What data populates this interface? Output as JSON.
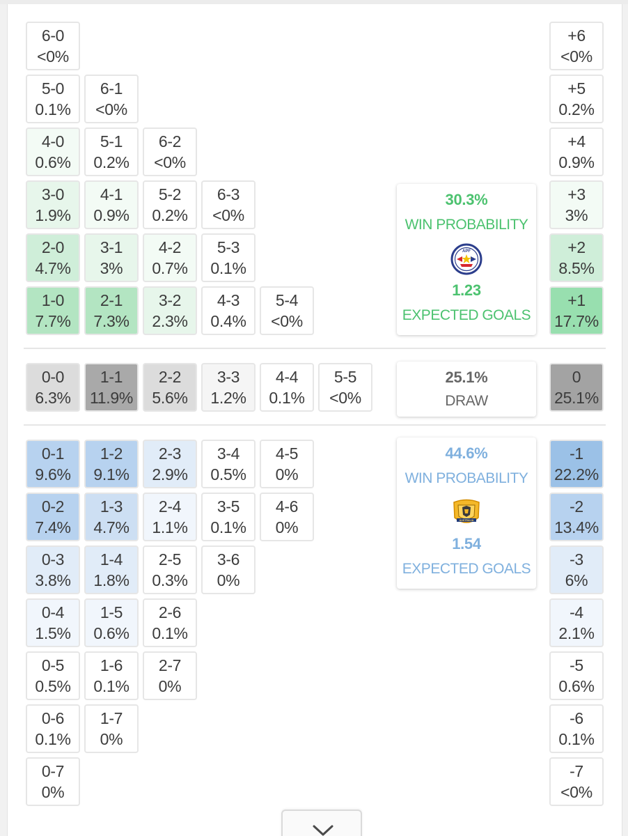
{
  "home_team": {
    "win_probability": "30.3%",
    "win_label": "WIN PROBABILITY",
    "expected_goals": "1.23",
    "xg_label": "EXPECTED GOALS",
    "crest": "paraguay-apf-crest-icon",
    "crest_text": "APF",
    "accent_color": "#4cc26f"
  },
  "draw": {
    "probability": "25.1%",
    "label": "DRAW"
  },
  "away_team": {
    "win_probability": "44.6%",
    "win_label": "WIN PROBABILITY",
    "expected_goals": "1.54",
    "xg_label": "EXPECTED GOALS",
    "crest": "australia-crest-icon",
    "crest_text": "AUSTRALIA",
    "accent_color": "#7fb0de"
  },
  "home_scores": [
    {
      "score": "6-0",
      "prob": "<0%",
      "shade": "g0"
    },
    {
      "score": "5-0",
      "prob": "0.1%",
      "shade": "g0"
    },
    {
      "score": "6-1",
      "prob": "<0%",
      "shade": "g0"
    },
    {
      "score": "4-0",
      "prob": "0.6%",
      "shade": "g1"
    },
    {
      "score": "5-1",
      "prob": "0.2%",
      "shade": "g0"
    },
    {
      "score": "6-2",
      "prob": "<0%",
      "shade": "g0"
    },
    {
      "score": "3-0",
      "prob": "1.9%",
      "shade": "g2"
    },
    {
      "score": "4-1",
      "prob": "0.9%",
      "shade": "g1"
    },
    {
      "score": "5-2",
      "prob": "0.2%",
      "shade": "g0"
    },
    {
      "score": "6-3",
      "prob": "<0%",
      "shade": "g0"
    },
    {
      "score": "2-0",
      "prob": "4.7%",
      "shade": "g3"
    },
    {
      "score": "3-1",
      "prob": "3%",
      "shade": "g2"
    },
    {
      "score": "4-2",
      "prob": "0.7%",
      "shade": "g1"
    },
    {
      "score": "5-3",
      "prob": "0.1%",
      "shade": "g0"
    },
    {
      "score": "1-0",
      "prob": "7.7%",
      "shade": "g4"
    },
    {
      "score": "2-1",
      "prob": "7.3%",
      "shade": "g4"
    },
    {
      "score": "3-2",
      "prob": "2.3%",
      "shade": "g2"
    },
    {
      "score": "4-3",
      "prob": "0.4%",
      "shade": "g0"
    },
    {
      "score": "5-4",
      "prob": "<0%",
      "shade": "g0"
    }
  ],
  "draw_scores": [
    {
      "score": "0-0",
      "prob": "6.3%",
      "shade": "d3"
    },
    {
      "score": "1-1",
      "prob": "11.9%",
      "shade": "d4"
    },
    {
      "score": "2-2",
      "prob": "5.6%",
      "shade": "d3"
    },
    {
      "score": "3-3",
      "prob": "1.2%",
      "shade": "d1"
    },
    {
      "score": "4-4",
      "prob": "0.1%",
      "shade": "d0"
    },
    {
      "score": "5-5",
      "prob": "<0%",
      "shade": "d0"
    }
  ],
  "away_scores": [
    {
      "score": "0-1",
      "prob": "9.6%",
      "shade": "b4"
    },
    {
      "score": "1-2",
      "prob": "9.1%",
      "shade": "b4"
    },
    {
      "score": "2-3",
      "prob": "2.9%",
      "shade": "b2"
    },
    {
      "score": "3-4",
      "prob": "0.5%",
      "shade": "b0"
    },
    {
      "score": "4-5",
      "prob": "0%",
      "shade": "b0"
    },
    {
      "score": "0-2",
      "prob": "7.4%",
      "shade": "b4"
    },
    {
      "score": "1-3",
      "prob": "4.7%",
      "shade": "b3"
    },
    {
      "score": "2-4",
      "prob": "1.1%",
      "shade": "b1"
    },
    {
      "score": "3-5",
      "prob": "0.1%",
      "shade": "b0"
    },
    {
      "score": "4-6",
      "prob": "0%",
      "shade": "b0"
    },
    {
      "score": "0-3",
      "prob": "3.8%",
      "shade": "b2"
    },
    {
      "score": "1-4",
      "prob": "1.8%",
      "shade": "b2"
    },
    {
      "score": "2-5",
      "prob": "0.3%",
      "shade": "b0"
    },
    {
      "score": "3-6",
      "prob": "0%",
      "shade": "b0"
    },
    {
      "score": "0-4",
      "prob": "1.5%",
      "shade": "b1"
    },
    {
      "score": "1-5",
      "prob": "0.6%",
      "shade": "b1"
    },
    {
      "score": "2-6",
      "prob": "0.1%",
      "shade": "b0"
    },
    {
      "score": "0-5",
      "prob": "0.5%",
      "shade": "b0"
    },
    {
      "score": "1-6",
      "prob": "0.1%",
      "shade": "b0"
    },
    {
      "score": "2-7",
      "prob": "0%",
      "shade": "b0"
    },
    {
      "score": "0-6",
      "prob": "0.1%",
      "shade": "b0"
    },
    {
      "score": "1-7",
      "prob": "0%",
      "shade": "b0"
    },
    {
      "score": "0-7",
      "prob": "0%",
      "shade": "b0"
    }
  ],
  "margins": [
    {
      "label": "+6",
      "prob": "<0%",
      "shade": "g0"
    },
    {
      "label": "+5",
      "prob": "0.2%",
      "shade": "g0"
    },
    {
      "label": "+4",
      "prob": "0.9%",
      "shade": "g0"
    },
    {
      "label": "+3",
      "prob": "3%",
      "shade": "g1"
    },
    {
      "label": "+2",
      "prob": "8.5%",
      "shade": "g3"
    },
    {
      "label": "+1",
      "prob": "17.7%",
      "shade": "g5"
    },
    {
      "label": "0",
      "prob": "25.1%",
      "shade": "d5"
    },
    {
      "label": "-1",
      "prob": "22.2%",
      "shade": "b5"
    },
    {
      "label": "-2",
      "prob": "13.4%",
      "shade": "b4"
    },
    {
      "label": "-3",
      "prob": "6%",
      "shade": "b2"
    },
    {
      "label": "-4",
      "prob": "2.1%",
      "shade": "b1"
    },
    {
      "label": "-5",
      "prob": "0.6%",
      "shade": "b0"
    },
    {
      "label": "-6",
      "prob": "0.1%",
      "shade": "b0"
    },
    {
      "label": "-7",
      "prob": "<0%",
      "shade": "b0"
    }
  ],
  "expand_button": {
    "icon": "chevron-down-icon"
  },
  "shade_colors": {
    "g0": "#ffffff",
    "g1": "#f3fbf5",
    "g2": "#e7f6eb",
    "g3": "#cfeed9",
    "g4": "#b3e5c2",
    "g5": "#98dfaf",
    "b0": "#ffffff",
    "b1": "#f1f6fc",
    "b2": "#e1ecf8",
    "b3": "#cddff3",
    "b4": "#b7d2ef",
    "b5": "#9bc1e7",
    "d0": "#ffffff",
    "d1": "#f5f5f5",
    "d3": "#dcdcdc",
    "d4": "#a9a9a9",
    "d5": "#a3a3a3"
  }
}
